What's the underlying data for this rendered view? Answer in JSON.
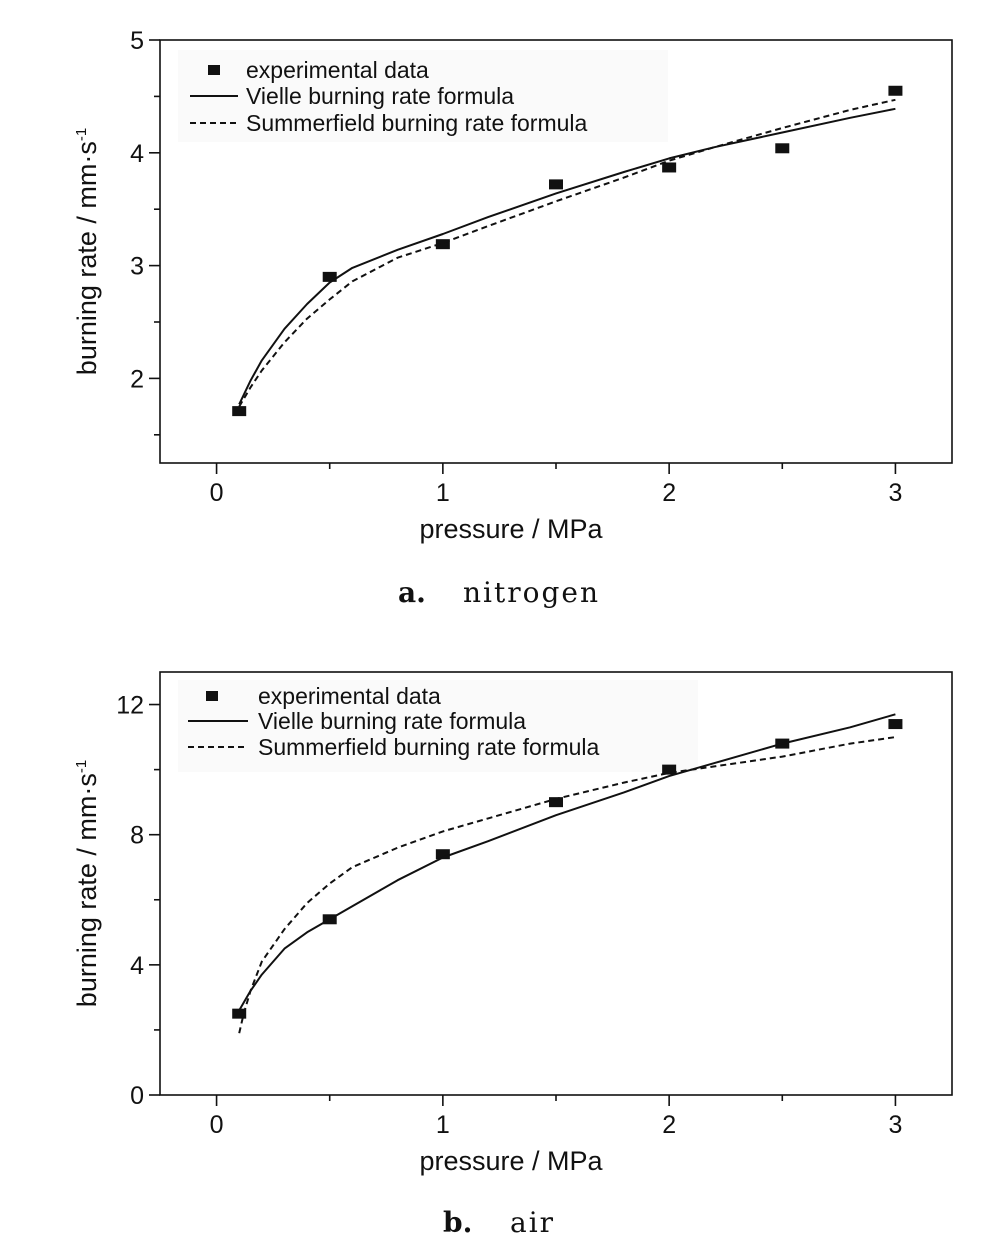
{
  "colors": {
    "ink": "#111111",
    "background": "#ffffff"
  },
  "chart_data": [
    {
      "type": "scatter",
      "panel": "a",
      "caption": {
        "letter": "a.",
        "text": "nitrogen"
      },
      "xlabel": "pressure / MPa",
      "ylabel": "burning rate / mm·s",
      "ylabel_sup": "-1",
      "xlim": [
        -0.25,
        3.25
      ],
      "ylim": [
        1.25,
        5.0
      ],
      "xticks": [
        0,
        1,
        2,
        3
      ],
      "yticks": [
        2,
        3,
        4,
        5
      ],
      "grid": false,
      "legend_position": "top-left",
      "series": [
        {
          "name": "experimental data",
          "style": "square-markers",
          "x": [
            0.1,
            0.5,
            1.0,
            1.5,
            2.0,
            2.5,
            3.0
          ],
          "values": [
            1.71,
            2.9,
            3.19,
            3.72,
            3.87,
            4.04,
            4.55
          ]
        },
        {
          "name": "Vielle burning rate formula",
          "style": "solid-line",
          "x": [
            0.1,
            0.15,
            0.2,
            0.3,
            0.4,
            0.5,
            0.6,
            0.8,
            1.0,
            1.2,
            1.5,
            1.8,
            2.0,
            2.2,
            2.5,
            2.8,
            3.0
          ],
          "values": [
            1.77,
            1.98,
            2.16,
            2.44,
            2.66,
            2.85,
            2.98,
            3.14,
            3.28,
            3.43,
            3.64,
            3.83,
            3.95,
            4.05,
            4.18,
            4.31,
            4.39
          ]
        },
        {
          "name": "Summerfield burning rate formula",
          "style": "dashed-line",
          "x": [
            0.1,
            0.15,
            0.2,
            0.3,
            0.4,
            0.5,
            0.6,
            0.8,
            1.0,
            1.2,
            1.5,
            1.8,
            2.0,
            2.2,
            2.5,
            2.8,
            3.0
          ],
          "values": [
            1.75,
            1.92,
            2.07,
            2.32,
            2.53,
            2.7,
            2.86,
            3.07,
            3.2,
            3.35,
            3.57,
            3.78,
            3.93,
            4.05,
            4.22,
            4.38,
            4.47
          ]
        }
      ]
    },
    {
      "type": "scatter",
      "panel": "b",
      "caption": {
        "letter": "b.",
        "text": "air"
      },
      "xlabel": "pressure / MPa",
      "ylabel": "burning rate / mm·s",
      "ylabel_sup": "-1",
      "xlim": [
        -0.25,
        3.25
      ],
      "ylim": [
        0,
        13
      ],
      "xticks": [
        0,
        1,
        2,
        3
      ],
      "yticks": [
        0,
        4,
        8,
        12
      ],
      "grid": false,
      "legend_position": "top-left",
      "series": [
        {
          "name": "experimental data",
          "style": "square-markers",
          "x": [
            0.1,
            0.5,
            1.0,
            1.5,
            2.0,
            2.5,
            3.0
          ],
          "values": [
            2.5,
            5.4,
            7.4,
            9.0,
            10.0,
            10.8,
            11.4
          ]
        },
        {
          "name": "Vielle burning rate formula",
          "style": "solid-line",
          "x": [
            0.1,
            0.15,
            0.2,
            0.3,
            0.4,
            0.5,
            0.6,
            0.8,
            1.0,
            1.2,
            1.5,
            1.8,
            2.0,
            2.2,
            2.5,
            2.8,
            3.0
          ],
          "values": [
            2.6,
            3.2,
            3.7,
            4.5,
            5.0,
            5.4,
            5.8,
            6.6,
            7.3,
            7.8,
            8.6,
            9.3,
            9.8,
            10.2,
            10.8,
            11.3,
            11.7
          ]
        },
        {
          "name": "Summerfield burning rate formula",
          "style": "dashed-line",
          "x": [
            0.1,
            0.12,
            0.15,
            0.2,
            0.3,
            0.4,
            0.5,
            0.6,
            0.8,
            1.0,
            1.2,
            1.5,
            1.8,
            2.0,
            2.2,
            2.5,
            2.8,
            3.0
          ],
          "values": [
            1.9,
            2.5,
            3.2,
            4.1,
            5.1,
            5.9,
            6.5,
            7.0,
            7.6,
            8.1,
            8.5,
            9.1,
            9.6,
            9.9,
            10.1,
            10.4,
            10.8,
            11.0
          ]
        }
      ]
    }
  ]
}
